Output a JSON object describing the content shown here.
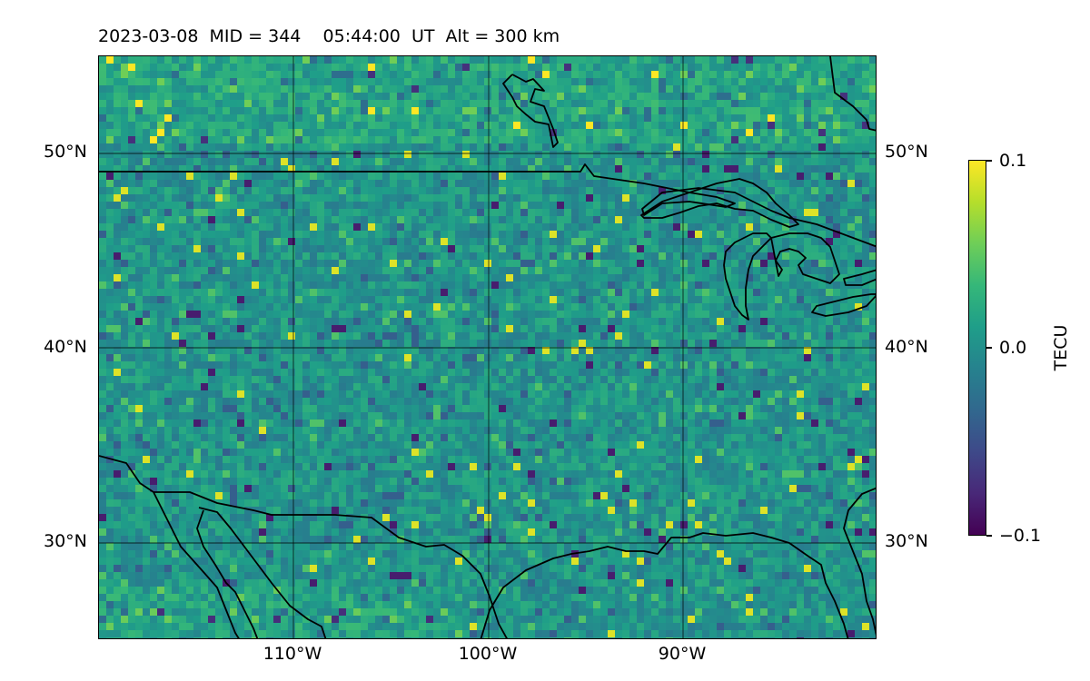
{
  "title": "2023-03-08  MID = 344    05:44:00  UT  Alt = 300 km",
  "map": {
    "projection": "equirectangular",
    "lon_range": [
      -120,
      -80
    ],
    "lat_range": [
      25,
      55
    ],
    "background_field": "TEC anomaly (viridis)",
    "lat_ticks": [
      "50°N",
      "40°N",
      "30°N"
    ],
    "lon_ticks": [
      "110°W",
      "100°W",
      "90°W"
    ],
    "coastline_color": "#000000"
  },
  "colorbar": {
    "label": "TECU",
    "colormap": "viridis",
    "min_label": "−0.1",
    "mid_label": "0.0",
    "max_label": "0.1",
    "min": -0.1,
    "max": 0.1
  }
}
